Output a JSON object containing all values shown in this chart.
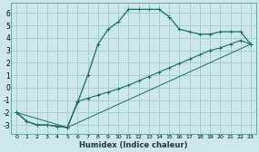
{
  "xlabel": "Humidex (Indice chaleur)",
  "bg_color": "#cce8ea",
  "grid_color": "#aacdd0",
  "line_color": "#1a6b6b",
  "xlim": [
    -0.5,
    23.5
  ],
  "ylim": [
    -3.7,
    6.8
  ],
  "xticks": [
    0,
    1,
    2,
    3,
    4,
    5,
    6,
    7,
    8,
    9,
    10,
    11,
    12,
    13,
    14,
    15,
    16,
    17,
    18,
    19,
    20,
    21,
    22,
    23
  ],
  "yticks": [
    -3,
    -2,
    -1,
    0,
    1,
    2,
    3,
    4,
    5,
    6
  ],
  "line1_x": [
    0,
    1,
    2,
    3,
    4,
    5,
    6,
    7,
    8,
    9,
    10,
    11,
    12,
    13,
    14,
    15,
    16,
    17,
    18,
    19,
    20,
    21,
    22,
    23
  ],
  "line1_y": [
    -2.0,
    -2.7,
    -3.0,
    -3.0,
    -3.1,
    -3.2,
    -1.2,
    1.0,
    3.5,
    4.7,
    5.3,
    6.3,
    6.3,
    6.3,
    6.3,
    5.7,
    4.7,
    4.5,
    4.3,
    4.3,
    4.5,
    4.5,
    4.5,
    3.5
  ],
  "line2_x": [
    0,
    1,
    2,
    3,
    4,
    5,
    6,
    7,
    8,
    9,
    10,
    11,
    12,
    13,
    14,
    15,
    16,
    17,
    18,
    19,
    20,
    21,
    22,
    23
  ],
  "line2_y": [
    -2.0,
    -2.7,
    -3.0,
    -3.0,
    -3.1,
    -3.2,
    -1.1,
    -0.85,
    -0.6,
    -0.35,
    -0.1,
    0.2,
    0.55,
    0.9,
    1.25,
    1.6,
    1.95,
    2.3,
    2.65,
    3.0,
    3.2,
    3.5,
    3.8,
    3.5
  ],
  "line3_x": [
    0,
    5,
    23
  ],
  "line3_y": [
    -2.0,
    -3.2,
    3.5
  ]
}
